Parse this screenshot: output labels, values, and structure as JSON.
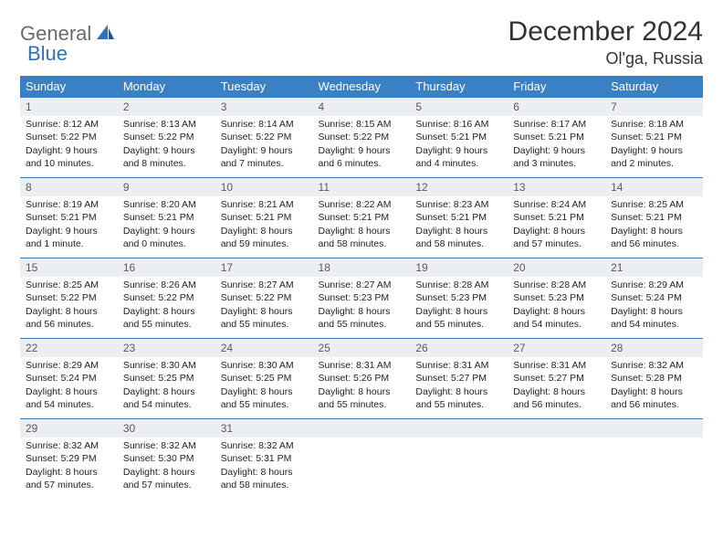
{
  "logo": {
    "general": "General",
    "blue": "Blue"
  },
  "title": "December 2024",
  "location": "Ol'ga, Russia",
  "colors": {
    "header_bg": "#3a80c4",
    "header_text": "#ffffff",
    "daynum_bg": "#eceff1",
    "daynum_text": "#5a5a5a",
    "body_text": "#222222",
    "border": "#3a80c4",
    "logo_gray": "#6b6b6b",
    "logo_blue": "#2f72b9"
  },
  "weekdays": [
    "Sunday",
    "Monday",
    "Tuesday",
    "Wednesday",
    "Thursday",
    "Friday",
    "Saturday"
  ],
  "days": {
    "1": {
      "sunrise": "Sunrise: 8:12 AM",
      "sunset": "Sunset: 5:22 PM",
      "daylight": "Daylight: 9 hours and 10 minutes."
    },
    "2": {
      "sunrise": "Sunrise: 8:13 AM",
      "sunset": "Sunset: 5:22 PM",
      "daylight": "Daylight: 9 hours and 8 minutes."
    },
    "3": {
      "sunrise": "Sunrise: 8:14 AM",
      "sunset": "Sunset: 5:22 PM",
      "daylight": "Daylight: 9 hours and 7 minutes."
    },
    "4": {
      "sunrise": "Sunrise: 8:15 AM",
      "sunset": "Sunset: 5:22 PM",
      "daylight": "Daylight: 9 hours and 6 minutes."
    },
    "5": {
      "sunrise": "Sunrise: 8:16 AM",
      "sunset": "Sunset: 5:21 PM",
      "daylight": "Daylight: 9 hours and 4 minutes."
    },
    "6": {
      "sunrise": "Sunrise: 8:17 AM",
      "sunset": "Sunset: 5:21 PM",
      "daylight": "Daylight: 9 hours and 3 minutes."
    },
    "7": {
      "sunrise": "Sunrise: 8:18 AM",
      "sunset": "Sunset: 5:21 PM",
      "daylight": "Daylight: 9 hours and 2 minutes."
    },
    "8": {
      "sunrise": "Sunrise: 8:19 AM",
      "sunset": "Sunset: 5:21 PM",
      "daylight": "Daylight: 9 hours and 1 minute."
    },
    "9": {
      "sunrise": "Sunrise: 8:20 AM",
      "sunset": "Sunset: 5:21 PM",
      "daylight": "Daylight: 9 hours and 0 minutes."
    },
    "10": {
      "sunrise": "Sunrise: 8:21 AM",
      "sunset": "Sunset: 5:21 PM",
      "daylight": "Daylight: 8 hours and 59 minutes."
    },
    "11": {
      "sunrise": "Sunrise: 8:22 AM",
      "sunset": "Sunset: 5:21 PM",
      "daylight": "Daylight: 8 hours and 58 minutes."
    },
    "12": {
      "sunrise": "Sunrise: 8:23 AM",
      "sunset": "Sunset: 5:21 PM",
      "daylight": "Daylight: 8 hours and 58 minutes."
    },
    "13": {
      "sunrise": "Sunrise: 8:24 AM",
      "sunset": "Sunset: 5:21 PM",
      "daylight": "Daylight: 8 hours and 57 minutes."
    },
    "14": {
      "sunrise": "Sunrise: 8:25 AM",
      "sunset": "Sunset: 5:21 PM",
      "daylight": "Daylight: 8 hours and 56 minutes."
    },
    "15": {
      "sunrise": "Sunrise: 8:25 AM",
      "sunset": "Sunset: 5:22 PM",
      "daylight": "Daylight: 8 hours and 56 minutes."
    },
    "16": {
      "sunrise": "Sunrise: 8:26 AM",
      "sunset": "Sunset: 5:22 PM",
      "daylight": "Daylight: 8 hours and 55 minutes."
    },
    "17": {
      "sunrise": "Sunrise: 8:27 AM",
      "sunset": "Sunset: 5:22 PM",
      "daylight": "Daylight: 8 hours and 55 minutes."
    },
    "18": {
      "sunrise": "Sunrise: 8:27 AM",
      "sunset": "Sunset: 5:23 PM",
      "daylight": "Daylight: 8 hours and 55 minutes."
    },
    "19": {
      "sunrise": "Sunrise: 8:28 AM",
      "sunset": "Sunset: 5:23 PM",
      "daylight": "Daylight: 8 hours and 55 minutes."
    },
    "20": {
      "sunrise": "Sunrise: 8:28 AM",
      "sunset": "Sunset: 5:23 PM",
      "daylight": "Daylight: 8 hours and 54 minutes."
    },
    "21": {
      "sunrise": "Sunrise: 8:29 AM",
      "sunset": "Sunset: 5:24 PM",
      "daylight": "Daylight: 8 hours and 54 minutes."
    },
    "22": {
      "sunrise": "Sunrise: 8:29 AM",
      "sunset": "Sunset: 5:24 PM",
      "daylight": "Daylight: 8 hours and 54 minutes."
    },
    "23": {
      "sunrise": "Sunrise: 8:30 AM",
      "sunset": "Sunset: 5:25 PM",
      "daylight": "Daylight: 8 hours and 54 minutes."
    },
    "24": {
      "sunrise": "Sunrise: 8:30 AM",
      "sunset": "Sunset: 5:25 PM",
      "daylight": "Daylight: 8 hours and 55 minutes."
    },
    "25": {
      "sunrise": "Sunrise: 8:31 AM",
      "sunset": "Sunset: 5:26 PM",
      "daylight": "Daylight: 8 hours and 55 minutes."
    },
    "26": {
      "sunrise": "Sunrise: 8:31 AM",
      "sunset": "Sunset: 5:27 PM",
      "daylight": "Daylight: 8 hours and 55 minutes."
    },
    "27": {
      "sunrise": "Sunrise: 8:31 AM",
      "sunset": "Sunset: 5:27 PM",
      "daylight": "Daylight: 8 hours and 56 minutes."
    },
    "28": {
      "sunrise": "Sunrise: 8:32 AM",
      "sunset": "Sunset: 5:28 PM",
      "daylight": "Daylight: 8 hours and 56 minutes."
    },
    "29": {
      "sunrise": "Sunrise: 8:32 AM",
      "sunset": "Sunset: 5:29 PM",
      "daylight": "Daylight: 8 hours and 57 minutes."
    },
    "30": {
      "sunrise": "Sunrise: 8:32 AM",
      "sunset": "Sunset: 5:30 PM",
      "daylight": "Daylight: 8 hours and 57 minutes."
    },
    "31": {
      "sunrise": "Sunrise: 8:32 AM",
      "sunset": "Sunset: 5:31 PM",
      "daylight": "Daylight: 8 hours and 58 minutes."
    }
  },
  "layout": [
    [
      1,
      2,
      3,
      4,
      5,
      6,
      7
    ],
    [
      8,
      9,
      10,
      11,
      12,
      13,
      14
    ],
    [
      15,
      16,
      17,
      18,
      19,
      20,
      21
    ],
    [
      22,
      23,
      24,
      25,
      26,
      27,
      28
    ],
    [
      29,
      30,
      31,
      null,
      null,
      null,
      null
    ]
  ]
}
